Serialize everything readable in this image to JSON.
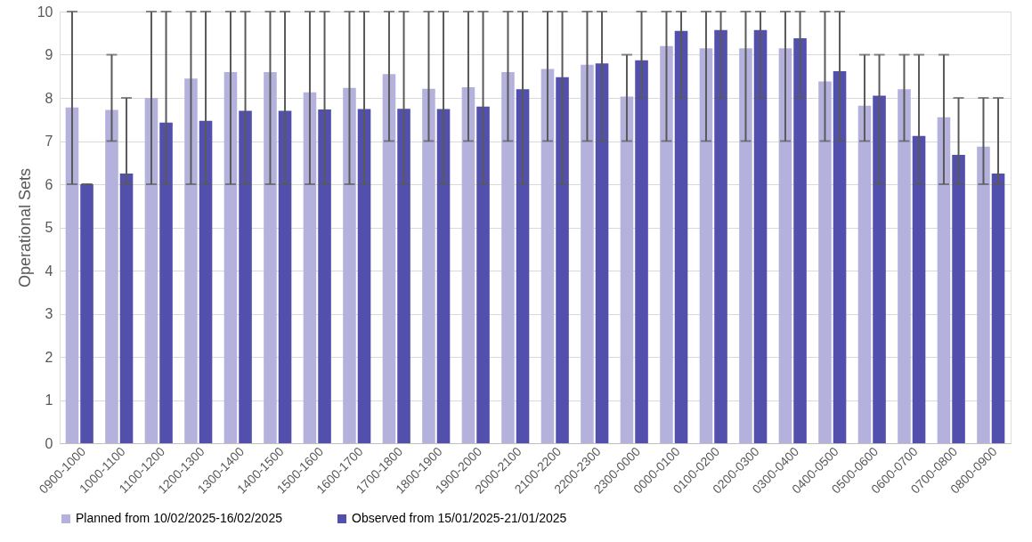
{
  "chart_data": {
    "type": "bar",
    "ylabel": "Operational Sets",
    "categories": [
      "0900-1000",
      "1000-1100",
      "1100-1200",
      "1200-1300",
      "1300-1400",
      "1400-1500",
      "1500-1600",
      "1600-1700",
      "1700-1800",
      "1800-1900",
      "1900-2000",
      "2000-2100",
      "2100-2200",
      "2200-2300",
      "2300-0000",
      "0000-0100",
      "0100-0200",
      "0200-0300",
      "0300-0400",
      "0400-0500",
      "0500-0600",
      "0600-0700",
      "0700-0800",
      "0800-0900"
    ],
    "series": [
      {
        "name": "Planned from 10/02/2025-16/02/2025",
        "color": "#b4b2dc",
        "values": [
          7.78,
          7.72,
          8.0,
          8.45,
          8.6,
          8.6,
          8.13,
          8.23,
          8.55,
          8.21,
          8.25,
          8.6,
          8.67,
          8.77,
          8.03,
          9.2,
          9.15,
          9.15,
          9.15,
          8.38,
          7.82,
          8.2,
          7.55,
          6.87
        ],
        "errors": [
          [
            6,
            10
          ],
          [
            7,
            9
          ],
          [
            6,
            10
          ],
          [
            6,
            10
          ],
          [
            6,
            10
          ],
          [
            6,
            10
          ],
          [
            6,
            10
          ],
          [
            6,
            10
          ],
          [
            7,
            10
          ],
          [
            7,
            10
          ],
          [
            7,
            10
          ],
          [
            7,
            10
          ],
          [
            7,
            10
          ],
          [
            7,
            10
          ],
          [
            7,
            9
          ],
          [
            7,
            10
          ],
          [
            7,
            10
          ],
          [
            7,
            10
          ],
          [
            7,
            10
          ],
          [
            7,
            10
          ],
          [
            7,
            9
          ],
          [
            7,
            9
          ],
          [
            6,
            9
          ],
          [
            6,
            8
          ]
        ]
      },
      {
        "name": "Observed  from 15/01/2025-21/01/2025",
        "color": "#5250ac",
        "values": [
          6.0,
          6.25,
          7.43,
          7.47,
          7.7,
          7.7,
          7.73,
          7.74,
          7.75,
          7.74,
          7.8,
          8.2,
          8.48,
          8.8,
          8.87,
          9.55,
          9.57,
          9.57,
          9.38,
          8.62,
          8.05,
          7.12,
          6.68,
          6.25
        ],
        "errors": [
          [
            6,
            6
          ],
          [
            6,
            8
          ],
          [
            6,
            10
          ],
          [
            6,
            10
          ],
          [
            6,
            10
          ],
          [
            6,
            10
          ],
          [
            6,
            10
          ],
          [
            6,
            10
          ],
          [
            6,
            10
          ],
          [
            6,
            10
          ],
          [
            6,
            10
          ],
          [
            6,
            10
          ],
          [
            6,
            10
          ],
          [
            7,
            10
          ],
          [
            8,
            10
          ],
          [
            8,
            10
          ],
          [
            8,
            10
          ],
          [
            8,
            10
          ],
          [
            8,
            10
          ],
          [
            7,
            10
          ],
          [
            6,
            9
          ],
          [
            6,
            9
          ],
          [
            6,
            8
          ],
          [
            6,
            8
          ]
        ]
      }
    ],
    "ylim": [
      0,
      10
    ],
    "yticks": [
      0,
      1,
      2,
      3,
      4,
      5,
      6,
      7,
      8,
      9,
      10
    ],
    "grid": "y",
    "legend": "bottom"
  }
}
